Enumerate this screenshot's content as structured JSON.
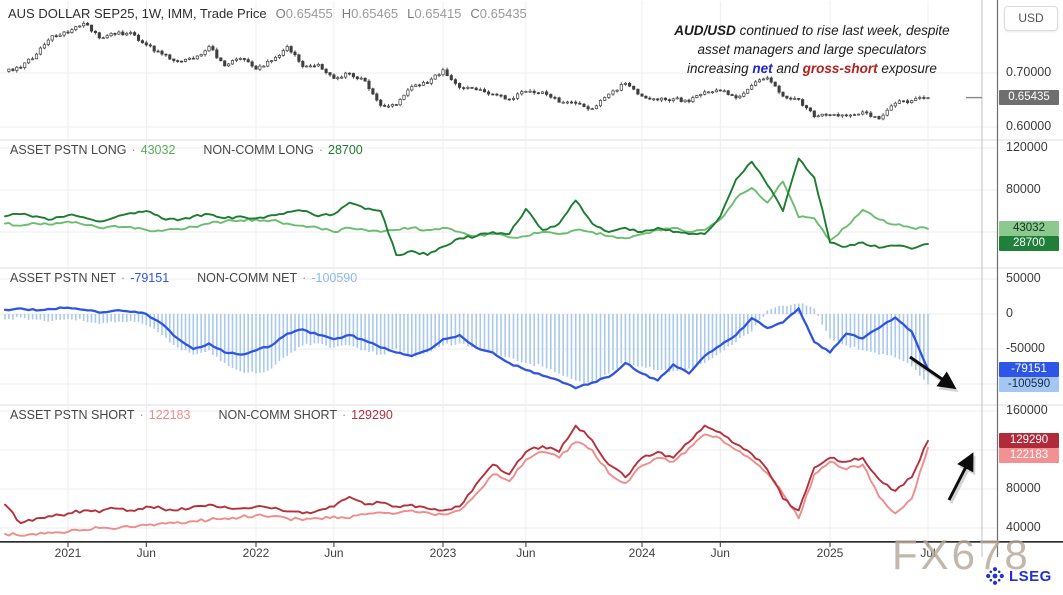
{
  "title": {
    "instrument": "AUS DOLLAR SEP25, 1W, IMM, Trade Price",
    "ohlc": [
      {
        "k": "O",
        "v": "0.65455"
      },
      {
        "k": "H",
        "v": "0.65465"
      },
      {
        "k": "L",
        "v": "0.65415"
      },
      {
        "k": "C",
        "v": "0.65435"
      }
    ]
  },
  "annotation": {
    "lines": [
      [
        {
          "t": "AUD/USD",
          "b": 1
        },
        {
          "t": " continued to rise last week, despite"
        }
      ],
      [
        {
          "t": "asset managers and large speculators"
        }
      ],
      [
        {
          "t": "increasing "
        },
        {
          "t": "net",
          "b": 1,
          "c": "#2323d6"
        },
        {
          "t": " and "
        },
        {
          "t": "gross-short",
          "b": 1,
          "c": "#b51f1f"
        },
        {
          "t": " exposure"
        }
      ]
    ]
  },
  "price_axis": {
    "currency": "USD"
  },
  "panels": [
    {
      "name": "price",
      "legend": [],
      "badges": [
        {
          "text": "0.65435",
          "bg": "#6f6f6f",
          "fg": "#ffffff",
          "value": 0.65435
        }
      ],
      "yticks": [
        {
          "label": "0.70000",
          "value": 0.7
        },
        {
          "label": "0.60000",
          "value": 0.6
        }
      ]
    },
    {
      "name": "long",
      "legend": [
        {
          "label": "ASSET PSTN LONG",
          "value": "43032",
          "color": "#58ae5b"
        },
        {
          "label": "NON-COMM LONG",
          "value": "28700",
          "color": "#1d7c31"
        }
      ],
      "badges": [
        {
          "text": "43032",
          "bg": "#8bc98e",
          "fg": "#14321a",
          "value": 43032
        },
        {
          "text": "28700",
          "bg": "#20803a",
          "fg": "#ffffff",
          "value": 28700
        }
      ],
      "yticks": [
        {
          "label": "120000",
          "value": 120000
        },
        {
          "label": "80000",
          "value": 80000
        }
      ]
    },
    {
      "name": "net",
      "legend": [
        {
          "label": "ASSET PSTN NET",
          "value": "-79151",
          "color": "#3355e0"
        },
        {
          "label": "NON-COMM NET",
          "value": "-100590",
          "color": "#8fb9ed"
        }
      ],
      "badges": [
        {
          "text": "-79151",
          "bg": "#2e54e8",
          "fg": "#ffffff",
          "value": -79151
        },
        {
          "text": "-100590",
          "bg": "#a3c6f2",
          "fg": "#16294a",
          "value": -100590
        }
      ],
      "yticks": [
        {
          "label": "50000",
          "value": 50000
        },
        {
          "label": "0",
          "value": 0
        },
        {
          "label": "-50000",
          "value": -50000
        }
      ]
    },
    {
      "name": "short",
      "legend": [
        {
          "label": "ASSET PSTN SHORT",
          "value": "122183",
          "color": "#ef8c8c"
        },
        {
          "label": "NON-COMM SHORT",
          "value": "129290",
          "color": "#b5303d"
        }
      ],
      "badges": [
        {
          "text": "129290",
          "bg": "#b02a3a",
          "fg": "#ffffff",
          "value": 129290
        },
        {
          "text": "122183",
          "bg": "#f29191",
          "fg": "#ffffff",
          "value": 122183
        }
      ],
      "yticks": [
        {
          "label": "160000",
          "value": 160000
        },
        {
          "label": "80000",
          "value": 80000
        },
        {
          "label": "40000",
          "value": 40000
        }
      ]
    }
  ],
  "time_axis": {
    "ticks": [
      {
        "label": "2021",
        "m": 4
      },
      {
        "label": "Jun",
        "m": 9
      },
      {
        "label": "2022",
        "m": 16
      },
      {
        "label": "Jun",
        "m": 21
      },
      {
        "label": "2023",
        "m": 28
      },
      {
        "label": "Jun",
        "m": 33
      },
      {
        "label": "2024",
        "m": 40
      },
      {
        "label": "Jun",
        "m": 45
      },
      {
        "label": "2025",
        "m": 52
      },
      {
        "label": "Jul",
        "m": 58
      }
    ]
  },
  "watermark": "FX678",
  "brand": "LSEG",
  "chart_data": {
    "months": [
      "2020-09",
      "2020-10",
      "2020-11",
      "2020-12",
      "2021-01",
      "2021-02",
      "2021-03",
      "2021-04",
      "2021-05",
      "2021-06",
      "2021-07",
      "2021-08",
      "2021-09",
      "2021-10",
      "2021-11",
      "2021-12",
      "2022-01",
      "2022-02",
      "2022-03",
      "2022-04",
      "2022-05",
      "2022-06",
      "2022-07",
      "2022-08",
      "2022-09",
      "2022-10",
      "2022-11",
      "2022-12",
      "2023-01",
      "2023-02",
      "2023-03",
      "2023-04",
      "2023-05",
      "2023-06",
      "2023-07",
      "2023-08",
      "2023-09",
      "2023-10",
      "2023-11",
      "2023-12",
      "2024-01",
      "2024-02",
      "2024-03",
      "2024-04",
      "2024-05",
      "2024-06",
      "2024-07",
      "2024-08",
      "2024-09",
      "2024-10",
      "2024-11",
      "2024-12",
      "2025-01",
      "2025-02",
      "2025-03",
      "2025-04",
      "2025-05",
      "2025-06",
      "2025-07"
    ],
    "charts": [
      {
        "type": "candlestick",
        "panel": 0,
        "title": "AUS DOLLAR SEP25, 1W, IMM, Trade Price",
        "last_ohlc": {
          "o": 0.65455,
          "h": 0.65465,
          "l": 0.65415,
          "c": 0.65435
        },
        "ylim": [
          0.58,
          0.82
        ],
        "values": [
          0.703,
          0.71,
          0.735,
          0.769,
          0.775,
          0.792,
          0.765,
          0.772,
          0.775,
          0.752,
          0.735,
          0.722,
          0.726,
          0.749,
          0.713,
          0.727,
          0.707,
          0.723,
          0.749,
          0.712,
          0.716,
          0.69,
          0.699,
          0.685,
          0.64,
          0.641,
          0.675,
          0.681,
          0.706,
          0.673,
          0.669,
          0.661,
          0.651,
          0.666,
          0.665,
          0.646,
          0.644,
          0.634,
          0.661,
          0.681,
          0.657,
          0.65,
          0.652,
          0.647,
          0.665,
          0.667,
          0.654,
          0.677,
          0.691,
          0.657,
          0.651,
          0.619,
          0.622,
          0.621,
          0.628,
          0.615,
          0.644,
          0.649,
          0.6543
        ]
      },
      {
        "type": "line",
        "panel": 1,
        "title": "Gross long positioning",
        "ylim": [
          0,
          130000
        ],
        "series": [
          {
            "name": "ASSET PSTN LONG",
            "color": "#6dbd71",
            "last": 43032,
            "values": [
              48000,
              46000,
              48000,
              47000,
              50000,
              47000,
              44000,
              46000,
              45000,
              42000,
              41000,
              43000,
              45000,
              48000,
              50000,
              51000,
              52000,
              51000,
              48000,
              46000,
              44000,
              40000,
              44000,
              42000,
              40000,
              42000,
              44000,
              42000,
              44000,
              40000,
              36000,
              38000,
              35000,
              36000,
              40000,
              38000,
              42000,
              40000,
              36000,
              34000,
              38000,
              42000,
              44000,
              40000,
              42000,
              52000,
              72000,
              82000,
              68000,
              88000,
              54000,
              53000,
              32000,
              45000,
              61000,
              52000,
              47000,
              44000,
              43032
            ]
          },
          {
            "name": "NON-COMM LONG",
            "color": "#1d7c31",
            "last": 28700,
            "values": [
              55000,
              57000,
              55000,
              52000,
              56000,
              54000,
              50000,
              54000,
              58000,
              60000,
              53000,
              51000,
              55000,
              57000,
              53000,
              55000,
              53000,
              56000,
              59000,
              60000,
              55000,
              57000,
              68000,
              62000,
              60000,
              18000,
              22000,
              18000,
              26000,
              34000,
              36000,
              40000,
              38000,
              62000,
              42000,
              48000,
              70000,
              48000,
              40000,
              44000,
              40000,
              44000,
              40000,
              38000,
              38000,
              55000,
              90000,
              107000,
              85000,
              60000,
              110000,
              92000,
              30000,
              26000,
              30000,
              25000,
              27000,
              24000,
              28700
            ]
          }
        ]
      },
      {
        "type": "line+bar",
        "panel": 2,
        "title": "Net positioning",
        "ylim": [
          -115000,
          55000
        ],
        "series": [
          {
            "name": "ASSET PSTN NET",
            "kind": "line",
            "color": "#2f55e0",
            "last": -79151,
            "values": [
              6000,
              8000,
              5000,
              7000,
              9000,
              6000,
              2000,
              5000,
              3000,
              0,
              -14000,
              -35000,
              -50000,
              -42000,
              -55000,
              -58000,
              -52000,
              -45000,
              -28000,
              -22000,
              -30000,
              -36000,
              -30000,
              -38000,
              -48000,
              -55000,
              -60000,
              -52000,
              -36000,
              -30000,
              -48000,
              -55000,
              -70000,
              -80000,
              -88000,
              -95000,
              -106000,
              -98000,
              -90000,
              -70000,
              -85000,
              -95000,
              -72000,
              -85000,
              -60000,
              -45000,
              -30000,
              -6000,
              -20000,
              -12000,
              8000,
              -40000,
              -55000,
              -28000,
              -35000,
              -20000,
              -5000,
              -25000,
              -79151
            ]
          },
          {
            "name": "NON-COMM NET",
            "kind": "bar",
            "color": "#a9c9ef",
            "last": -100590,
            "values": [
              -8000,
              -5000,
              -8000,
              -10000,
              -7000,
              -10000,
              -14000,
              -12000,
              -10000,
              -16000,
              -30000,
              -48000,
              -58000,
              -52000,
              -70000,
              -82000,
              -85000,
              -78000,
              -60000,
              -45000,
              -42000,
              -48000,
              -45000,
              -52000,
              -58000,
              -50000,
              -62000,
              -55000,
              -45000,
              -42000,
              -48000,
              -55000,
              -62000,
              -70000,
              -75000,
              -85000,
              -95000,
              -100000,
              -85000,
              -68000,
              -75000,
              -80000,
              -82000,
              -78000,
              -70000,
              -55000,
              -40000,
              -25000,
              5000,
              12000,
              15000,
              8000,
              -35000,
              -45000,
              -52000,
              -58000,
              -62000,
              -75000,
              -100590
            ]
          }
        ]
      },
      {
        "type": "line",
        "panel": 3,
        "title": "Gross short positioning",
        "ylim": [
          30000,
          165000
        ],
        "series": [
          {
            "name": "ASSET PSTN SHORT",
            "color": "#ef8c8c",
            "last": 122183,
            "values": [
              34000,
              32000,
              33000,
              35000,
              36000,
              38000,
              40000,
              39000,
              41000,
              43000,
              45000,
              46000,
              47000,
              48000,
              50000,
              51000,
              53000,
              52000,
              50000,
              48000,
              50000,
              52000,
              50000,
              54000,
              56000,
              55000,
              58000,
              56000,
              54000,
              58000,
              75000,
              95000,
              88000,
              110000,
              118000,
              112000,
              128000,
              120000,
              96000,
              86000,
              104000,
              112000,
              108000,
              122000,
              136000,
              132000,
              120000,
              110000,
              96000,
              75000,
              50000,
              95000,
              108000,
              100000,
              105000,
              72000,
              55000,
              70000,
              122183
            ]
          },
          {
            "name": "NON-COMM SHORT",
            "color": "#b5303d",
            "last": 129290,
            "values": [
              64000,
              45000,
              50000,
              52000,
              55000,
              58000,
              56000,
              60000,
              58000,
              62000,
              60000,
              58000,
              62000,
              64000,
              62000,
              60000,
              62000,
              60000,
              57000,
              55000,
              58000,
              62000,
              72000,
              64000,
              66000,
              62000,
              64000,
              60000,
              58000,
              62000,
              85000,
              105000,
              95000,
              118000,
              124000,
              118000,
              145000,
              130000,
              105000,
              92000,
              112000,
              118000,
              112000,
              128000,
              145000,
              138000,
              126000,
              116000,
              100000,
              70000,
              58000,
              102000,
              112000,
              108000,
              112000,
              90000,
              78000,
              92000,
              129290
            ]
          }
        ]
      }
    ]
  }
}
